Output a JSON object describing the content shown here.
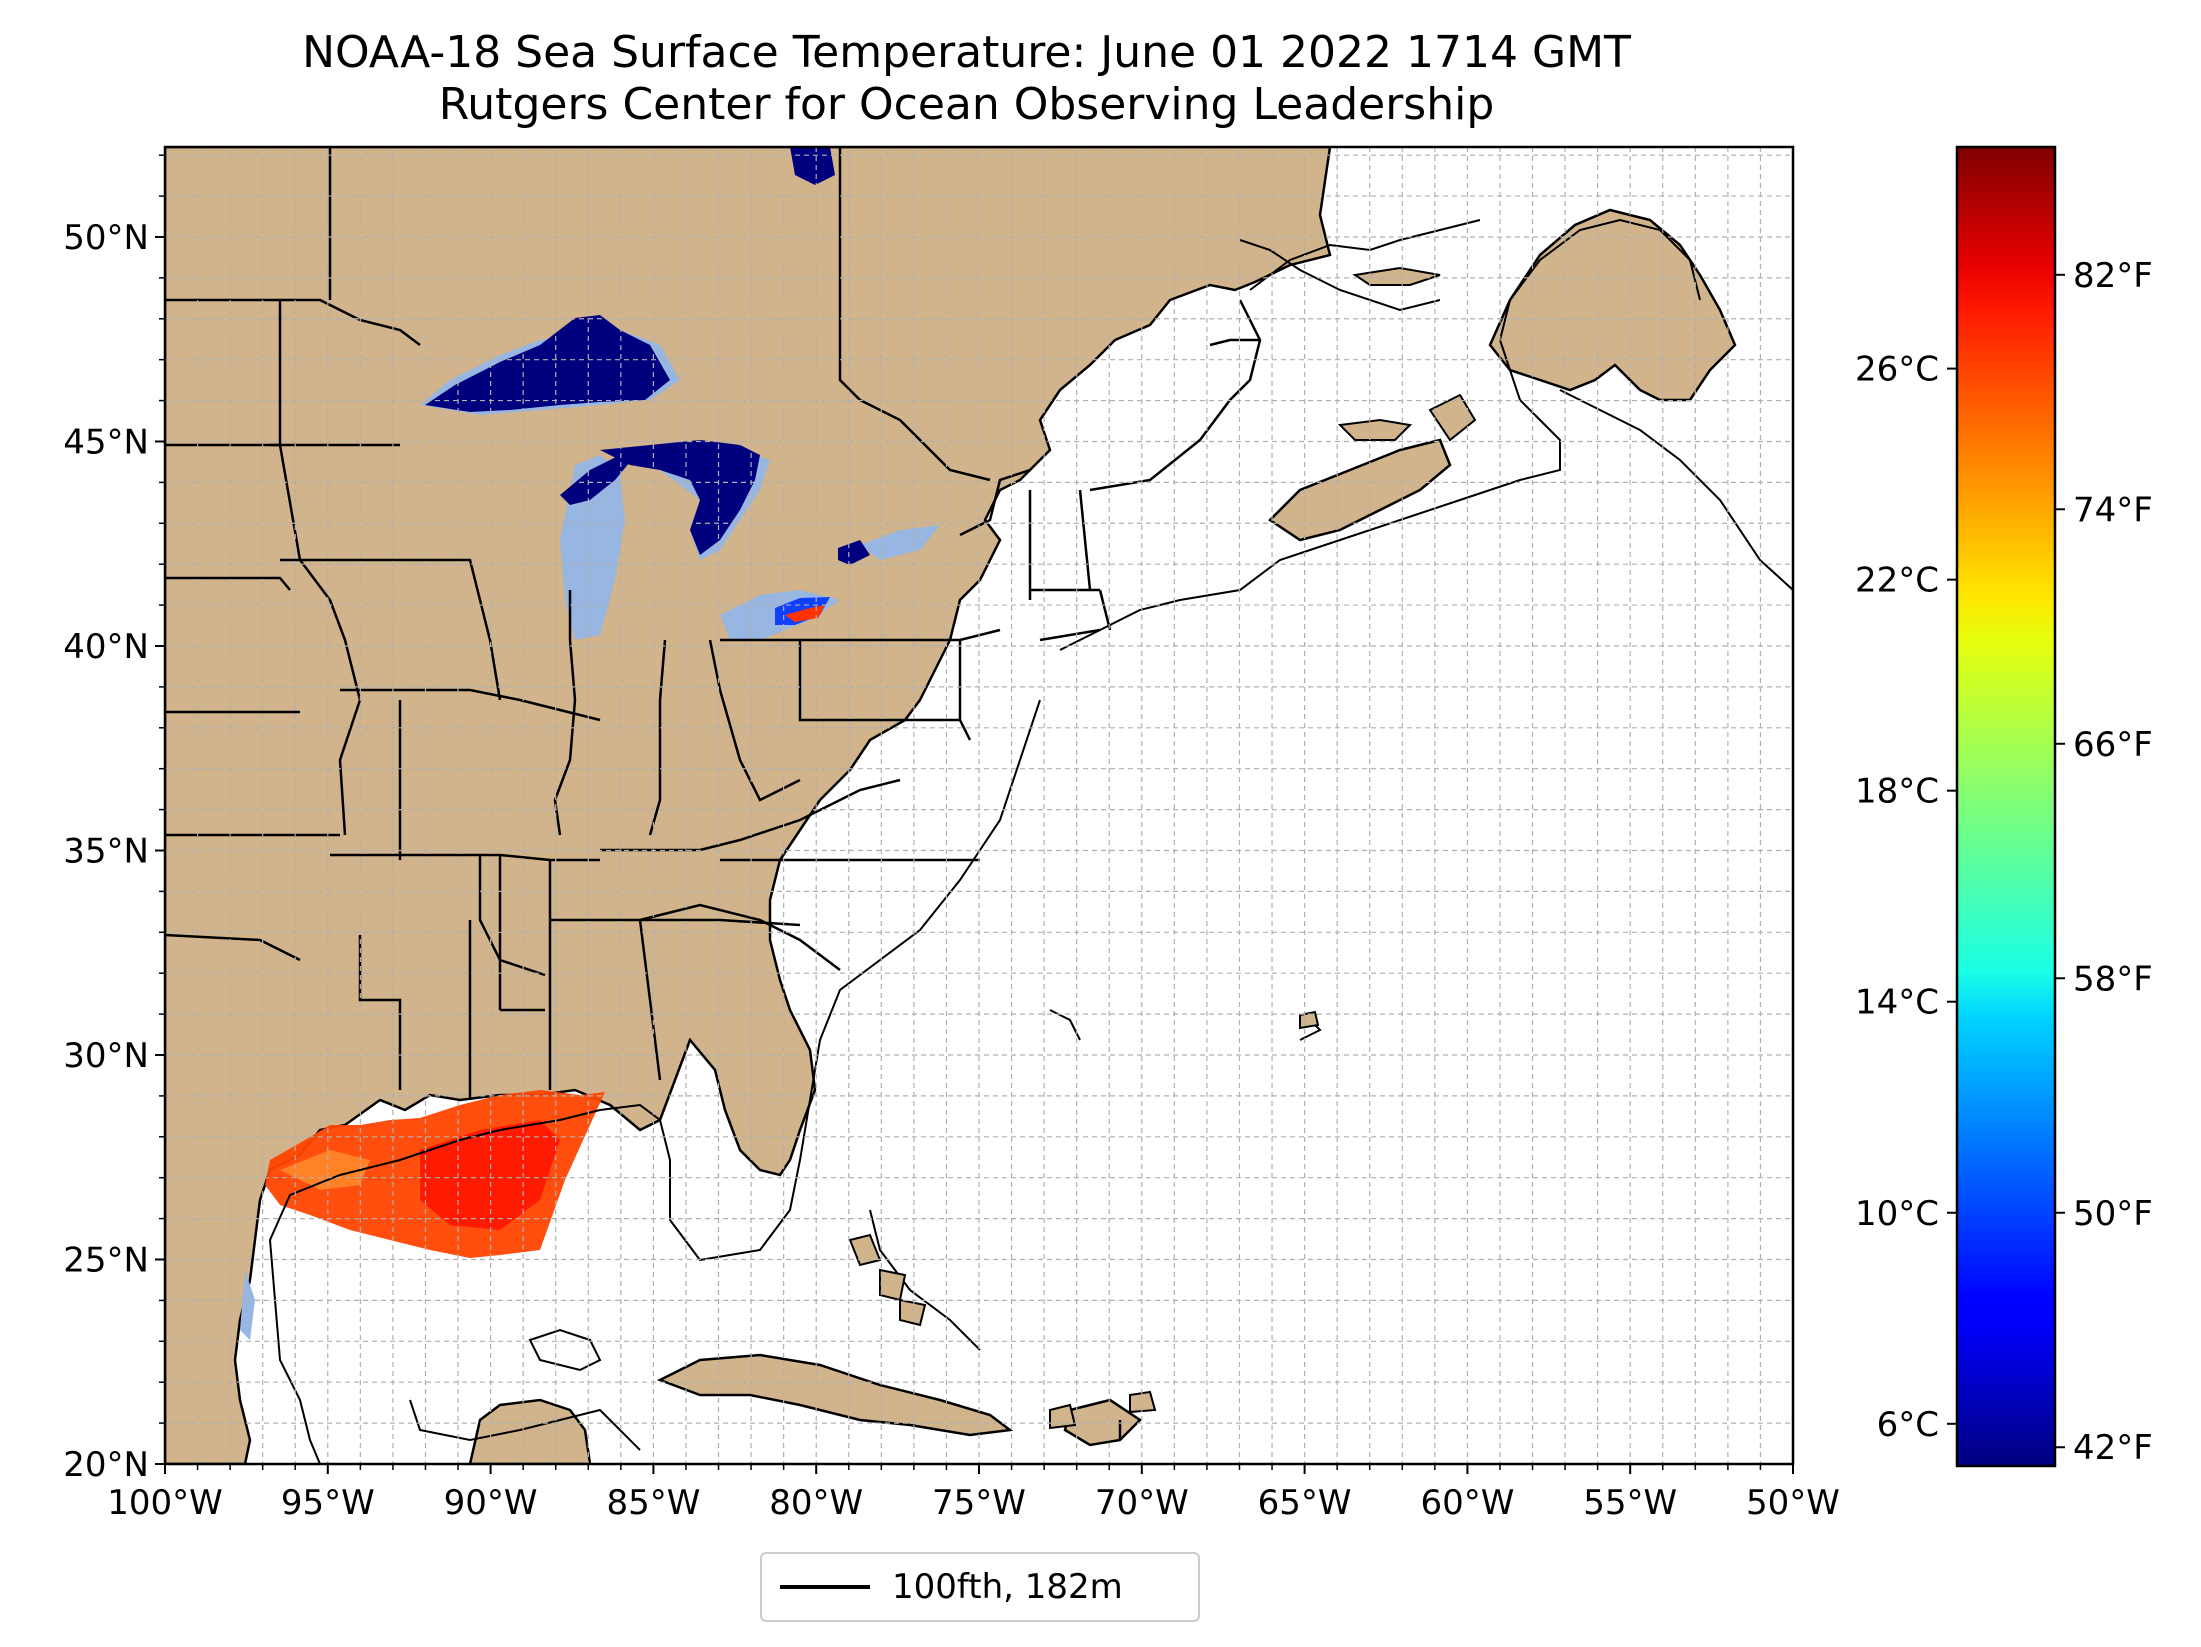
{
  "title": {
    "line1": "NOAA-18 Sea Surface Temperature: June 01 2022 1714 GMT",
    "line2": "Rutgers Center for Ocean Observing Leadership"
  },
  "map": {
    "projection": "PlateCarree",
    "lon_range": [
      -100,
      -50
    ],
    "lat_range": [
      20,
      52.2
    ],
    "x_ticks": [
      {
        "lon": -100,
        "label": "100°W"
      },
      {
        "lon": -95,
        "label": "95°W"
      },
      {
        "lon": -90,
        "label": "90°W"
      },
      {
        "lon": -85,
        "label": "85°W"
      },
      {
        "lon": -80,
        "label": "80°W"
      },
      {
        "lon": -75,
        "label": "75°W"
      },
      {
        "lon": -70,
        "label": "70°W"
      },
      {
        "lon": -65,
        "label": "65°W"
      },
      {
        "lon": -60,
        "label": "60°W"
      },
      {
        "lon": -55,
        "label": "55°W"
      },
      {
        "lon": -50,
        "label": "50°W"
      }
    ],
    "y_ticks": [
      {
        "lat": 20,
        "label": "20°N"
      },
      {
        "lat": 25,
        "label": "25°N"
      },
      {
        "lat": 30,
        "label": "30°N"
      },
      {
        "lat": 35,
        "label": "35°N"
      },
      {
        "lat": 40,
        "label": "40°N"
      },
      {
        "lat": 45,
        "label": "45°N"
      },
      {
        "lat": 50,
        "label": "50°N"
      }
    ],
    "gridlines": "dashed, 1° spacing",
    "colors": {
      "land": "#d2b48c",
      "lakes": "#97b6e1",
      "ocean": "#ffffff",
      "coastline": "#000000",
      "gridline": "#b0b0b0"
    }
  },
  "colorbar": {
    "cmap": "jet",
    "celsius_ticks": [
      {
        "value": 6,
        "label": "6°C"
      },
      {
        "value": 10,
        "label": "10°C"
      },
      {
        "value": 14,
        "label": "14°C"
      },
      {
        "value": 18,
        "label": "18°C"
      },
      {
        "value": 22,
        "label": "22°C"
      },
      {
        "value": 26,
        "label": "26°C"
      }
    ],
    "fahrenheit_ticks": [
      {
        "value": 42,
        "label": "42°F"
      },
      {
        "value": 50,
        "label": "50°F"
      },
      {
        "value": 58,
        "label": "58°F"
      },
      {
        "value": 66,
        "label": "66°F"
      },
      {
        "value": 74,
        "label": "74°F"
      },
      {
        "value": 82,
        "label": "82°F"
      }
    ],
    "range_celsius": [
      5.2,
      30.2
    ]
  },
  "legend": {
    "entry": "100fth, 182m",
    "line_color": "#000000",
    "placement": "bottom-center"
  }
}
